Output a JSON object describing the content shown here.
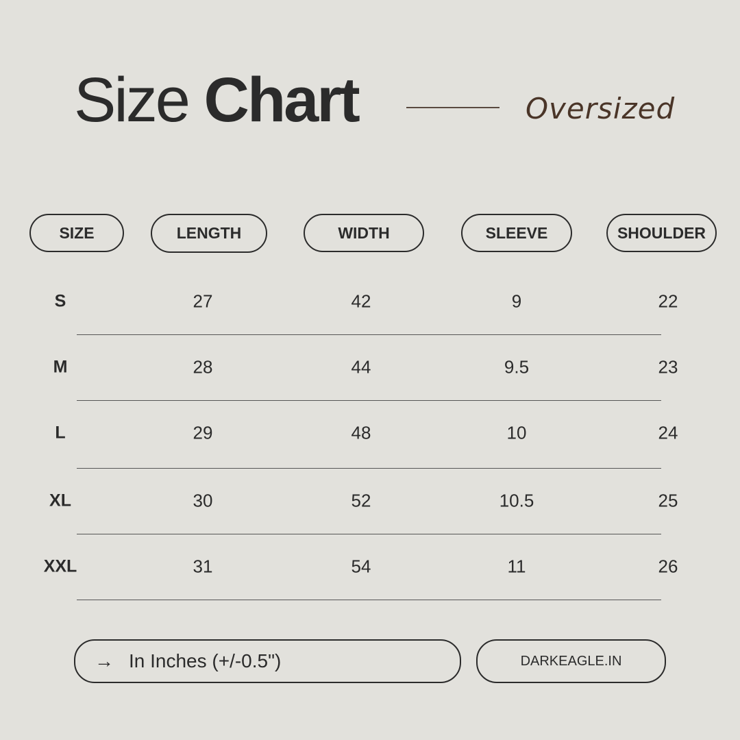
{
  "header": {
    "title_light": "Size",
    "title_bold": "Chart",
    "subtitle": "Oversized"
  },
  "columns": [
    "SIZE",
    "LENGTH",
    "WIDTH",
    "SLEEVE",
    "SHOULDER"
  ],
  "rows": [
    [
      "S",
      "27",
      "42",
      "9",
      "22"
    ],
    [
      "M",
      "28",
      "44",
      "9.5",
      "23"
    ],
    [
      "L",
      "29",
      "48",
      "10",
      "24"
    ],
    [
      "XL",
      "30",
      "52",
      "10.5",
      "25"
    ],
    [
      "XXL",
      "31",
      "54",
      "11",
      "26"
    ]
  ],
  "footer": {
    "note": "In Inches (+/-0.5\")",
    "note_icon": "arrow-right-icon",
    "website": "DARKEAGLE.IN"
  },
  "colors": {
    "background": "#e2e1dc",
    "text": "#2b2b2b",
    "accent": "#4a3528"
  }
}
